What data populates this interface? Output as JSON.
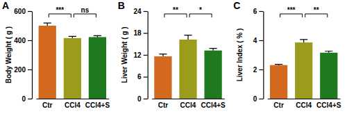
{
  "chart_data": [
    {
      "type": "bar",
      "title": "A",
      "y_label": "Body Weight ( g )",
      "categories": [
        "Ctr",
        "CCl4",
        "CCl4+S"
      ],
      "values": [
        500,
        415,
        422
      ],
      "errors": [
        18,
        12,
        10
      ],
      "colors": [
        "#d2691e",
        "#9c9c1c",
        "#1f7a1f"
      ],
      "ylim": [
        0,
        600
      ],
      "yticks": [
        0,
        200,
        400,
        600
      ],
      "annotations": [
        {
          "between": [
            "Ctr",
            "CCl4"
          ],
          "text": "***"
        },
        {
          "between": [
            "CCl4",
            "CCl4+S"
          ],
          "text": "ns"
        }
      ]
    },
    {
      "type": "bar",
      "title": "B",
      "y_label": "Liver Weight ( g )",
      "categories": [
        "Ctr",
        "CCl4",
        "CCl4+S"
      ],
      "values": [
        11.6,
        16.2,
        13.2
      ],
      "errors": [
        0.6,
        1.2,
        0.6
      ],
      "colors": [
        "#d2691e",
        "#9c9c1c",
        "#1f7a1f"
      ],
      "ylim": [
        0,
        24
      ],
      "yticks": [
        0,
        6,
        12,
        18,
        24
      ],
      "annotations": [
        {
          "between": [
            "Ctr",
            "CCl4"
          ],
          "text": "**"
        },
        {
          "between": [
            "CCl4",
            "CCl4+S"
          ],
          "text": "*"
        }
      ]
    },
    {
      "type": "bar",
      "title": "C",
      "y_label": "Liver Index ( % )",
      "categories": [
        "Ctr",
        "CCl4",
        "CCl4+S"
      ],
      "values": [
        2.3,
        3.85,
        3.15
      ],
      "errors": [
        0.05,
        0.2,
        0.1
      ],
      "colors": [
        "#d2691e",
        "#9c9c1c",
        "#1f7a1f"
      ],
      "ylim": [
        0,
        6
      ],
      "yticks": [
        0,
        2,
        4,
        6
      ],
      "annotations": [
        {
          "between": [
            "Ctr",
            "CCl4"
          ],
          "text": "***"
        },
        {
          "between": [
            "CCl4",
            "CCl4+S"
          ],
          "text": "**"
        }
      ]
    }
  ]
}
